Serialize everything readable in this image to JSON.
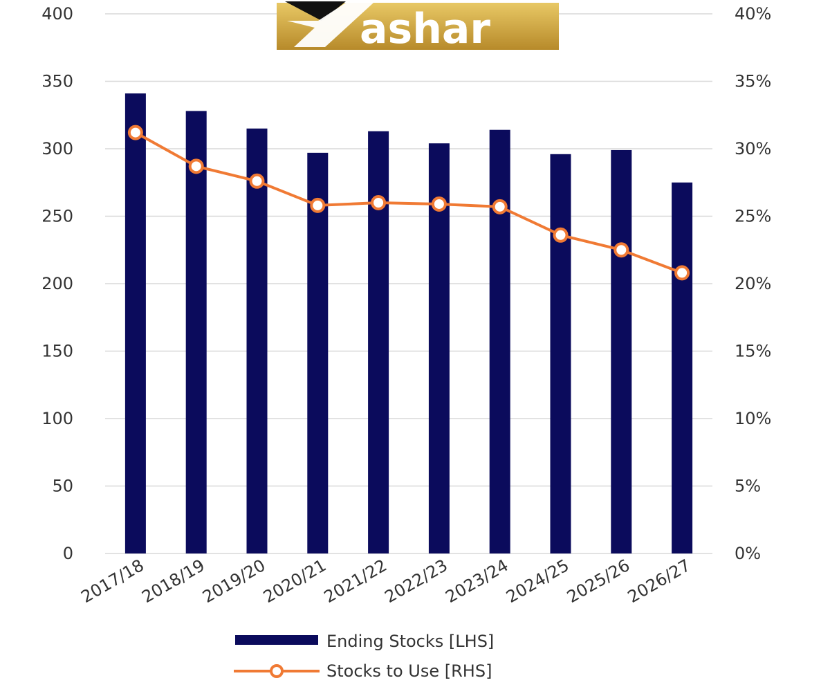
{
  "logo": {
    "text": "ashar",
    "gold": "#c9a13a",
    "gold_light": "#e8c865"
  },
  "chart_data": {
    "type": "bar",
    "categories": [
      "2017/18",
      "2018/19",
      "2019/20",
      "2020/21",
      "2021/22",
      "2022/23",
      "2023/24",
      "2024/25",
      "2025/26",
      "2026/27"
    ],
    "series": [
      {
        "name": "Ending Stocks [LHS]",
        "type": "bar",
        "axis": "left",
        "color": "#0b0b5c",
        "values": [
          341,
          328,
          315,
          297,
          313,
          304,
          314,
          296,
          299,
          275
        ]
      },
      {
        "name": "Stocks to Use [RHS]",
        "type": "line",
        "axis": "right",
        "color": "#f07a34",
        "values": [
          31.2,
          28.7,
          27.6,
          25.8,
          26.0,
          25.9,
          25.7,
          23.6,
          22.5,
          20.8
        ]
      }
    ],
    "y_left": {
      "min": 0,
      "max": 400,
      "ticks": [
        "0",
        "50",
        "100",
        "150",
        "200",
        "250",
        "300",
        "350",
        "400"
      ]
    },
    "y_right": {
      "min": 0,
      "max": 40,
      "ticks": [
        "0%",
        "5%",
        "10%",
        "15%",
        "20%",
        "25%",
        "30%",
        "35%",
        "40%"
      ]
    },
    "grid": true,
    "legend_position": "bottom"
  }
}
